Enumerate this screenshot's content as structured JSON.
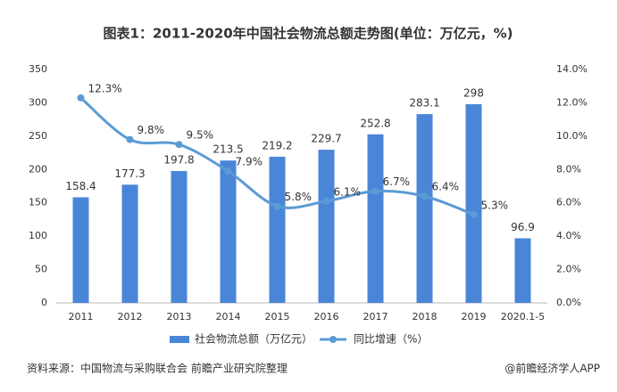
{
  "chart_data": {
    "type": "bar",
    "title": "图表1：2011-2020年中国社会物流总额走势图(单位：万亿元，%)",
    "categories": [
      "2011",
      "2012",
      "2013",
      "2014",
      "2015",
      "2016",
      "2017",
      "2018",
      "2019",
      "2020.1-5"
    ],
    "series": [
      {
        "name": "社会物流总额（万亿元）",
        "type": "bar",
        "color": "#4a86d8",
        "values": [
          158.4,
          177.3,
          197.8,
          213.5,
          219.2,
          229.7,
          252.8,
          283.1,
          298,
          96.9
        ]
      },
      {
        "name": "同比增速（%）",
        "type": "line",
        "axis": "y2",
        "color": "#5b9bd5",
        "values": [
          12.3,
          9.8,
          9.5,
          7.9,
          5.8,
          6.1,
          6.7,
          6.4,
          5.3,
          null
        ],
        "value_labels": [
          "12.3%",
          "9.8%",
          "9.5%",
          "7.9%",
          "5.8%",
          "6.1%",
          "6.7%",
          "6.4%",
          "5.3%",
          null
        ]
      }
    ],
    "ylim": [
      0,
      350
    ],
    "yticks": [
      0,
      50,
      100,
      150,
      200,
      250,
      300,
      350
    ],
    "y2lim": [
      0,
      14
    ],
    "y2ticks": [
      {
        "value": 0,
        "label": "0.0%"
      },
      {
        "value": 2,
        "label": "2.0%"
      },
      {
        "value": 4,
        "label": "4.0%"
      },
      {
        "value": 6,
        "label": "6.0%"
      },
      {
        "value": 8,
        "label": "8.0%"
      },
      {
        "value": 10,
        "label": "10.0%"
      },
      {
        "value": 12,
        "label": "12.0%"
      },
      {
        "value": 14,
        "label": "14.0%"
      }
    ],
    "grid": false,
    "legend": "bottom",
    "source": "资料来源：中国物流与采购联合会 前瞻产业研究院整理",
    "credit": "@前瞻经济学人APP"
  }
}
